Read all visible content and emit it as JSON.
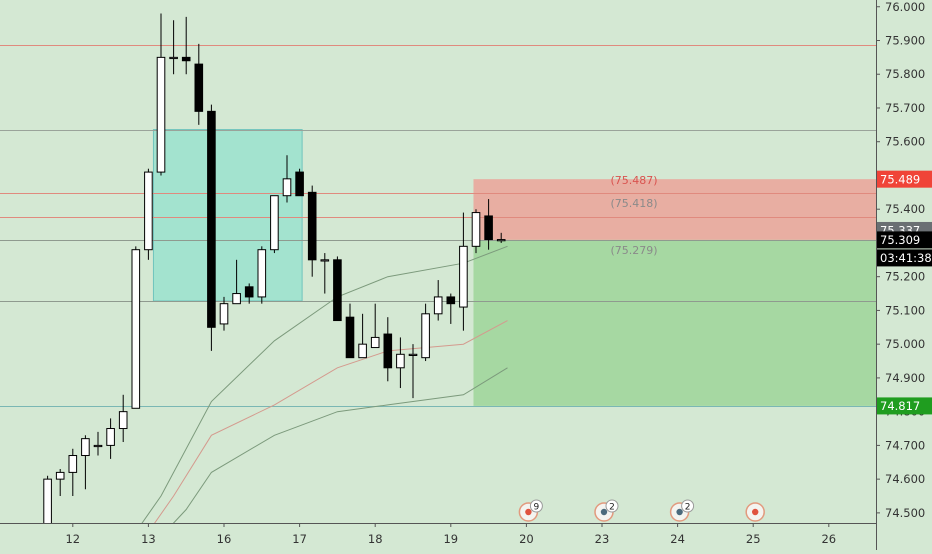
{
  "chart_data": {
    "type": "candlestick",
    "ylim": [
      74.39,
      76.02
    ],
    "y_ticks": [
      "76.000",
      "75.900",
      "75.800",
      "75.700",
      "75.600",
      "75.500",
      "75.400",
      "75.300",
      "75.200",
      "75.100",
      "75.000",
      "74.900",
      "74.800",
      "74.700",
      "74.600",
      "74.500"
    ],
    "x_ticks": [
      {
        "label": "12",
        "i": 3
      },
      {
        "label": "13",
        "i": 9
      },
      {
        "label": "16",
        "i": 15
      },
      {
        "label": "17",
        "i": 21
      },
      {
        "label": "18",
        "i": 27
      },
      {
        "label": "19",
        "i": 33
      },
      {
        "label": "20",
        "i": 39
      },
      {
        "label": "23",
        "i": 45
      },
      {
        "label": "24",
        "i": 51
      },
      {
        "label": "25",
        "i": 57
      },
      {
        "label": "26",
        "i": 63
      }
    ],
    "candles": [
      [
        74.4,
        74.42,
        74.34,
        74.35
      ],
      [
        74.35,
        74.61,
        74.35,
        74.6
      ],
      [
        74.6,
        74.63,
        74.55,
        74.62
      ],
      [
        74.62,
        74.69,
        74.55,
        74.67
      ],
      [
        74.67,
        74.73,
        74.57,
        74.72
      ],
      [
        74.7,
        74.74,
        74.67,
        74.7
      ],
      [
        74.7,
        74.78,
        74.66,
        74.75
      ],
      [
        74.75,
        74.85,
        74.71,
        74.8
      ],
      [
        74.81,
        75.29,
        74.81,
        75.28
      ],
      [
        75.28,
        75.52,
        75.25,
        75.51
      ],
      [
        75.51,
        75.98,
        75.5,
        75.85
      ],
      [
        75.85,
        75.96,
        75.8,
        75.85
      ],
      [
        75.85,
        75.97,
        75.8,
        75.84
      ],
      [
        75.83,
        75.89,
        75.65,
        75.69
      ],
      [
        75.69,
        75.71,
        74.98,
        75.05
      ],
      [
        75.06,
        75.14,
        75.04,
        75.12
      ],
      [
        75.12,
        75.25,
        75.12,
        75.15
      ],
      [
        75.17,
        75.18,
        75.12,
        75.14
      ],
      [
        75.14,
        75.29,
        75.12,
        75.28
      ],
      [
        75.28,
        75.43,
        75.27,
        75.44
      ],
      [
        75.44,
        75.56,
        75.42,
        75.49
      ],
      [
        75.51,
        75.52,
        75.45,
        75.44
      ],
      [
        75.45,
        75.47,
        75.2,
        75.25
      ],
      [
        75.25,
        75.27,
        75.15,
        75.25
      ],
      [
        75.25,
        75.26,
        75.08,
        75.07
      ],
      [
        75.08,
        75.12,
        74.96,
        74.96
      ],
      [
        74.96,
        75.09,
        74.96,
        75.0
      ],
      [
        74.99,
        75.12,
        74.99,
        75.02
      ],
      [
        75.03,
        75.08,
        74.89,
        74.93
      ],
      [
        74.93,
        75.02,
        74.87,
        74.97
      ],
      [
        74.97,
        75.0,
        74.84,
        74.97
      ],
      [
        74.96,
        75.12,
        74.95,
        75.09
      ],
      [
        75.09,
        75.19,
        75.07,
        75.14
      ],
      [
        75.14,
        75.15,
        75.06,
        75.12
      ],
      [
        75.11,
        75.39,
        75.04,
        75.29
      ],
      [
        75.29,
        75.4,
        75.27,
        75.39
      ],
      [
        75.38,
        75.43,
        75.28,
        75.31
      ],
      [
        75.31,
        75.33,
        75.3,
        75.31
      ]
    ],
    "levels": [
      {
        "price": 75.887,
        "color": "#e08a7e"
      },
      {
        "price": 75.636,
        "color": "#9aa39a"
      },
      {
        "price": 75.449,
        "color": "#e08a7e"
      },
      {
        "price": 75.378,
        "color": "#e08a7e"
      },
      {
        "price": 75.309,
        "color": "#8f9a8f"
      },
      {
        "price": 75.128,
        "color": "#8f9a8f"
      },
      {
        "price": 74.817,
        "color": "#7ab7b4"
      }
    ],
    "zone_box": {
      "i_start": 9.4,
      "i_end": 21.2,
      "top": 75.636,
      "bottom": 75.128,
      "fill": "#a3e3cf",
      "stroke": "#6fc4bd"
    },
    "position": {
      "i_start": 34.8,
      "i_end": 70,
      "entry": 75.309,
      "stop": 75.489,
      "target": 74.817,
      "stop_fill": "#e8aea2",
      "target_fill": "#a6d8a2"
    },
    "ema_lines": [
      {
        "color": "#7c9a7c",
        "points": [
          [
            7,
            74.39
          ],
          [
            10,
            74.55
          ],
          [
            14,
            74.83
          ],
          [
            19,
            75.01
          ],
          [
            24,
            75.14
          ],
          [
            28,
            75.2
          ],
          [
            34,
            75.24
          ],
          [
            37.5,
            75.29
          ]
        ]
      },
      {
        "color": "#d49a8e",
        "points": [
          [
            8,
            74.39
          ],
          [
            11,
            74.55
          ],
          [
            14,
            74.73
          ],
          [
            19,
            74.82
          ],
          [
            24,
            74.93
          ],
          [
            28,
            74.98
          ],
          [
            34,
            75.0
          ],
          [
            37.5,
            75.07
          ]
        ]
      },
      {
        "color": "#7c9a7c",
        "points": [
          [
            9,
            74.39
          ],
          [
            12,
            74.51
          ],
          [
            14,
            74.62
          ],
          [
            19,
            74.73
          ],
          [
            24,
            74.8
          ],
          [
            28,
            74.82
          ],
          [
            34,
            74.85
          ],
          [
            37.5,
            74.93
          ]
        ]
      }
    ],
    "annotations": [
      {
        "text": "(75.487)",
        "price": 75.487,
        "color": "#d9534f"
      },
      {
        "text": "(75.418)",
        "price": 75.418,
        "color": "#8a8a8a"
      },
      {
        "text": "(75.279)",
        "price": 75.279,
        "color": "#8a8a8a"
      }
    ],
    "price_labels": [
      {
        "text": "75.489",
        "price": 75.489,
        "bg": "#f04438",
        "fg": "#ffffff"
      },
      {
        "text": "75.337",
        "price": 75.337,
        "bg": "#6a6f73",
        "fg": "#ffffff"
      },
      {
        "text": "75.309",
        "price": 75.309,
        "bg": "#000000",
        "fg": "#ffffff"
      },
      {
        "text": "03:41:38",
        "price": 75.309,
        "bg": "#000000",
        "fg": "#ffffff",
        "second_line": true
      },
      {
        "text": "74.817",
        "price": 74.817,
        "bg": "#1f9d1f",
        "fg": "#ffffff"
      }
    ],
    "events": [
      {
        "i": 39,
        "count": "9",
        "kind": "flag"
      },
      {
        "i": 45,
        "count": "2",
        "kind": "globe"
      },
      {
        "i": 51,
        "count": "2",
        "kind": "globe"
      },
      {
        "i": 57,
        "count": "",
        "kind": "flag"
      }
    ],
    "colors": {
      "bull": "#ffffff",
      "bear": "#000000",
      "wick": "#000000",
      "axis_text": "#333333"
    }
  }
}
